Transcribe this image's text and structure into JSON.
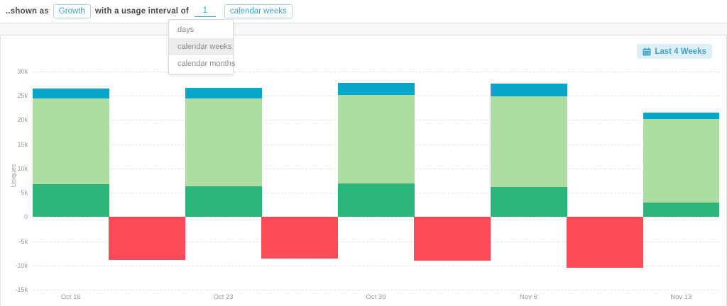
{
  "topbar": {
    "prefix_label": "..shown as",
    "shown_as_button": "Growth",
    "middle_label": "with a usage interval of",
    "interval_value": "1",
    "interval_unit_button": "calendar weeks"
  },
  "dropdown": {
    "options": [
      "days",
      "calendar weeks",
      "calendar months"
    ],
    "selected": "calendar weeks"
  },
  "range_button": {
    "label": "Last 4 Weeks",
    "icon": "calendar-icon"
  },
  "colors": {
    "teal_accent": "#41a3c7",
    "range_button_bg": "#def0f7",
    "bar_blue": "#0aa6c9",
    "bar_light_green": "#aedda4",
    "bar_dark_green": "#2db47a",
    "bar_red": "#fc4b58",
    "gridline": "#e3e3e3",
    "axis_text": "#9b9b9b"
  },
  "chart_data": {
    "type": "bar",
    "subtype": "stacked-positive-with-offset-negative-bars",
    "title": "",
    "xlabel": "",
    "ylabel": "Uniques",
    "categories": [
      "Oct 16",
      "Oct 23",
      "Oct 30",
      "Nov 6",
      "Nov 13"
    ],
    "series": [
      {
        "name": "dark-green-segment",
        "color": "#2db47a",
        "values": [
          6800,
          6300,
          6900,
          6200,
          3000
        ]
      },
      {
        "name": "light-green-segment",
        "color": "#aedda4",
        "values": [
          17600,
          18100,
          18300,
          18700,
          17200
        ]
      },
      {
        "name": "blue-segment",
        "color": "#0aa6c9",
        "values": [
          2100,
          2200,
          2500,
          2600,
          1300
        ]
      }
    ],
    "stack_totals": [
      26500,
      26600,
      27700,
      27500,
      21500
    ],
    "negative_series": {
      "name": "red-negative-bars",
      "color": "#fc4b58",
      "position": "between-categories",
      "values": [
        -8900,
        -8600,
        -9000,
        -10400
      ]
    },
    "ylim": [
      -15000,
      30000
    ],
    "yticks": [
      {
        "label": "30k",
        "value": 30000
      },
      {
        "label": "25k",
        "value": 25000
      },
      {
        "label": "20k",
        "value": 20000
      },
      {
        "label": "15k",
        "value": 15000
      },
      {
        "label": "10k",
        "value": 10000
      },
      {
        "label": "5k",
        "value": 5000
      },
      {
        "label": "0",
        "value": 0
      },
      {
        "label": "-5k",
        "value": -5000
      },
      {
        "label": "-10k",
        "value": -10000
      },
      {
        "label": "-15k",
        "value": -15000
      }
    ],
    "grid": "dashed-horizontal",
    "legend": "none"
  }
}
